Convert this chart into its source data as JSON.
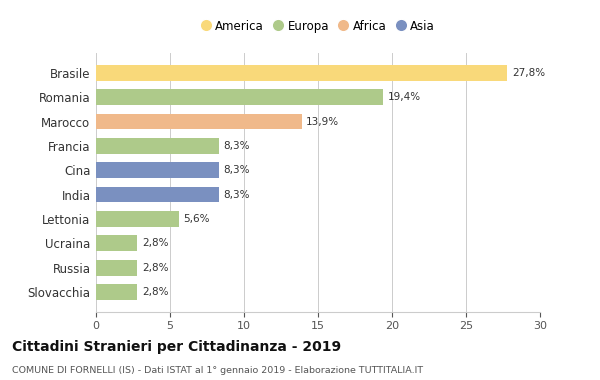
{
  "countries": [
    "Slovacchia",
    "Russia",
    "Ucraina",
    "Lettonia",
    "India",
    "Cina",
    "Francia",
    "Marocco",
    "Romania",
    "Brasile"
  ],
  "values": [
    2.8,
    2.8,
    2.8,
    5.6,
    8.3,
    8.3,
    8.3,
    13.9,
    19.4,
    27.8
  ],
  "labels": [
    "2,8%",
    "2,8%",
    "2,8%",
    "5,6%",
    "8,3%",
    "8,3%",
    "8,3%",
    "13,9%",
    "19,4%",
    "27,8%"
  ],
  "colors": [
    "#AECA8A",
    "#AECA8A",
    "#AECA8A",
    "#AECA8A",
    "#7A90C0",
    "#7A90C0",
    "#AECA8A",
    "#F0B98A",
    "#AECA8A",
    "#F9D97A"
  ],
  "legend_labels": [
    "America",
    "Europa",
    "Africa",
    "Asia"
  ],
  "legend_colors": [
    "#F9D97A",
    "#AECA8A",
    "#F0B98A",
    "#7A90C0"
  ],
  "title": "Cittadini Stranieri per Cittadinanza - 2019",
  "subtitle": "COMUNE DI FORNELLI (IS) - Dati ISTAT al 1° gennaio 2019 - Elaborazione TUTTITALIA.IT",
  "xlim": [
    0,
    30
  ],
  "xticks": [
    0,
    5,
    10,
    15,
    20,
    25,
    30
  ],
  "background_color": "#ffffff",
  "bar_height": 0.65
}
